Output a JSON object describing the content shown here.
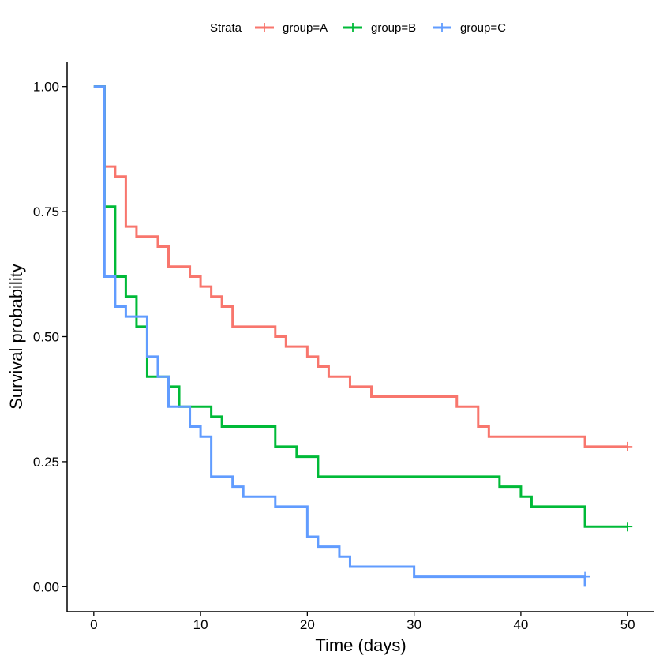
{
  "chart_data": {
    "type": "line",
    "subtype": "kaplan-meier-step",
    "title": "",
    "xlabel": "Time (days)",
    "ylabel": "Survival probability",
    "xlim": [
      -2.5,
      52.5
    ],
    "ylim": [
      -0.05,
      1.05
    ],
    "x_ticks": [
      0,
      10,
      20,
      30,
      40,
      50
    ],
    "y_ticks": [
      0.0,
      0.25,
      0.5,
      0.75,
      1.0
    ],
    "x_tick_labels": [
      "0",
      "10",
      "20",
      "30",
      "40",
      "50"
    ],
    "y_tick_labels": [
      "0.00",
      "0.25",
      "0.50",
      "0.75",
      "1.00"
    ],
    "grid": false,
    "legend": {
      "title": "Strata",
      "position": "top",
      "entries": [
        "group=A",
        "group=B",
        "group=C"
      ]
    },
    "series": [
      {
        "name": "group=A",
        "color": "#F8766D",
        "steps": [
          [
            0,
            1.0
          ],
          [
            1,
            0.84
          ],
          [
            2,
            0.82
          ],
          [
            3,
            0.72
          ],
          [
            4,
            0.7
          ],
          [
            6,
            0.68
          ],
          [
            7,
            0.64
          ],
          [
            9,
            0.62
          ],
          [
            10,
            0.6
          ],
          [
            11,
            0.58
          ],
          [
            12,
            0.56
          ],
          [
            13,
            0.52
          ],
          [
            17,
            0.5
          ],
          [
            18,
            0.48
          ],
          [
            20,
            0.46
          ],
          [
            21,
            0.44
          ],
          [
            22,
            0.42
          ],
          [
            24,
            0.4
          ],
          [
            26,
            0.38
          ],
          [
            34,
            0.36
          ],
          [
            36,
            0.32
          ],
          [
            37,
            0.3
          ],
          [
            46,
            0.28
          ]
        ],
        "end_time": 50,
        "censor_marks": [
          [
            50,
            0.28
          ]
        ]
      },
      {
        "name": "group=B",
        "color": "#00BA38",
        "steps": [
          [
            0,
            1.0
          ],
          [
            1,
            0.76
          ],
          [
            2,
            0.62
          ],
          [
            3,
            0.58
          ],
          [
            4,
            0.52
          ],
          [
            5,
            0.42
          ],
          [
            7,
            0.4
          ],
          [
            8,
            0.36
          ],
          [
            11,
            0.34
          ],
          [
            12,
            0.32
          ],
          [
            17,
            0.28
          ],
          [
            19,
            0.26
          ],
          [
            21,
            0.22
          ],
          [
            38,
            0.2
          ],
          [
            40,
            0.18
          ],
          [
            41,
            0.16
          ],
          [
            46,
            0.12
          ]
        ],
        "end_time": 50,
        "censor_marks": [
          [
            50,
            0.12
          ]
        ]
      },
      {
        "name": "group=C",
        "color": "#619CFF",
        "steps": [
          [
            0,
            1.0
          ],
          [
            1,
            0.62
          ],
          [
            2,
            0.56
          ],
          [
            3,
            0.54
          ],
          [
            5,
            0.46
          ],
          [
            6,
            0.42
          ],
          [
            7,
            0.36
          ],
          [
            9,
            0.32
          ],
          [
            10,
            0.3
          ],
          [
            11,
            0.22
          ],
          [
            13,
            0.2
          ],
          [
            14,
            0.18
          ],
          [
            17,
            0.16
          ],
          [
            20,
            0.1
          ],
          [
            21,
            0.08
          ],
          [
            23,
            0.06
          ],
          [
            24,
            0.04
          ],
          [
            30,
            0.02
          ],
          [
            46,
            0.0
          ]
        ],
        "end_time": 46,
        "censor_marks": [
          [
            46,
            0.02
          ]
        ]
      }
    ]
  }
}
